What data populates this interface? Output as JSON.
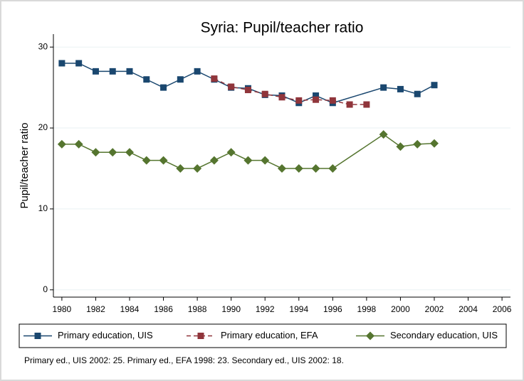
{
  "chart_data": {
    "type": "line",
    "title": "Syria: Pupil/teacher ratio",
    "ylabel": "Pupil/teacher ratio",
    "note": "Primary ed., UIS 2002: 25. Primary ed., EFA 1998: 23. Secondary ed., UIS 2002: 18.",
    "xlim": [
      1979.5,
      2006.5
    ],
    "xticks": [
      1980,
      1982,
      1984,
      1986,
      1988,
      1990,
      1992,
      1994,
      1996,
      1998,
      2000,
      2002,
      2004,
      2006
    ],
    "ylim": [
      -0.9,
      31.6
    ],
    "yticks": [
      0,
      10,
      20,
      30
    ],
    "grid": true,
    "series": [
      {
        "name": "Primary education, UIS",
        "color": "#1a476f",
        "marker": "square",
        "dash": false,
        "x": [
          1980,
          1981,
          1982,
          1983,
          1984,
          1985,
          1986,
          1987,
          1988,
          1989,
          1990,
          1991,
          1992,
          1993,
          1994,
          1995,
          1996,
          1999,
          2000,
          2001,
          2002
        ],
        "values": [
          28,
          28,
          27,
          27,
          27,
          26,
          25,
          26,
          27,
          26,
          25,
          24.9,
          24.1,
          24,
          23.1,
          24,
          23.1,
          25,
          24.8,
          24.2,
          25.3
        ]
      },
      {
        "name": "Primary education, EFA",
        "color": "#90353b",
        "marker": "square",
        "dash": true,
        "x": [
          1989,
          1990,
          1991,
          1992,
          1993,
          1994,
          1995,
          1996,
          1997,
          1998
        ],
        "values": [
          26.1,
          25.1,
          24.7,
          24.2,
          23.8,
          23.4,
          23.5,
          23.4,
          22.9,
          22.9
        ]
      },
      {
        "name": "Secondary education, UIS",
        "color": "#55752f",
        "marker": "diamond",
        "dash": false,
        "x": [
          1980,
          1981,
          1982,
          1983,
          1984,
          1985,
          1986,
          1987,
          1988,
          1989,
          1990,
          1991,
          1992,
          1993,
          1994,
          1995,
          1996,
          1999,
          2000,
          2001,
          2002
        ],
        "values": [
          18,
          18,
          17,
          17,
          17,
          16,
          16,
          15,
          15,
          16,
          17,
          16,
          16,
          15,
          15,
          15,
          15,
          19.2,
          17.7,
          18,
          18.1
        ]
      }
    ]
  }
}
